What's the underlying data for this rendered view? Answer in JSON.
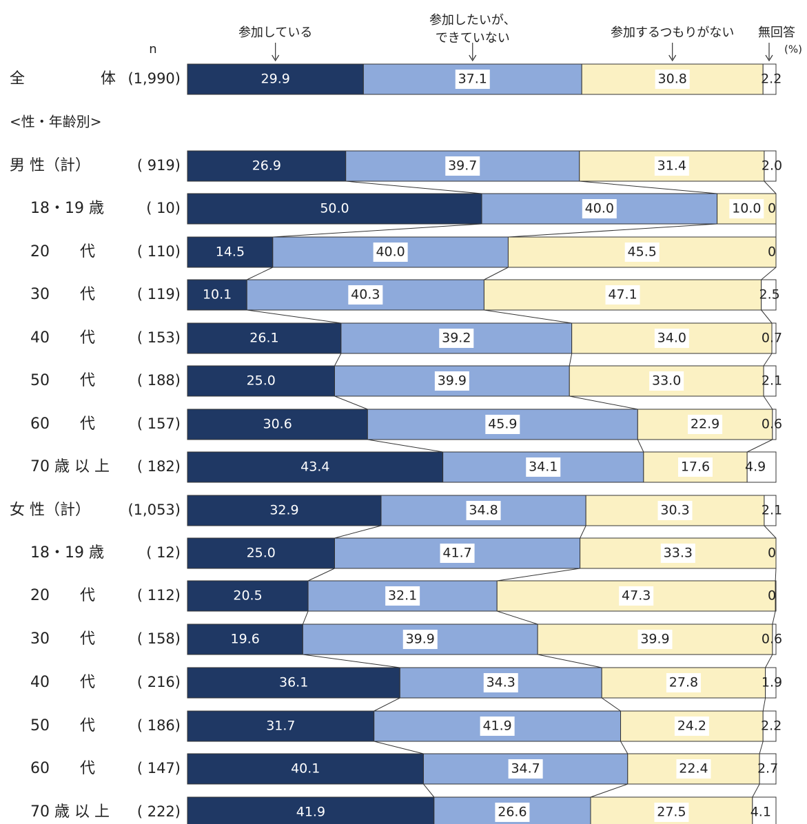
{
  "chart_data": {
    "type": "bar",
    "orientation": "horizontal-stacked-100",
    "n_header": "n",
    "unit_label": "(%)",
    "section_label": "<性・年齢別>",
    "series": [
      {
        "name": "参加している",
        "name_lines": [
          "参加している"
        ],
        "color": "#1f3864"
      },
      {
        "name": "参加したいが、できていない",
        "name_lines": [
          "参加したいが、",
          "できていない"
        ],
        "color": "#8eaadb"
      },
      {
        "name": "参加するつもりがない",
        "name_lines": [
          "参加するつもりがない"
        ],
        "color": "#fbf1c3"
      },
      {
        "name": "無回答",
        "name_lines": [
          "無回答"
        ],
        "color": "#ffffff"
      }
    ],
    "rows": [
      {
        "label": "全　　　　　体",
        "n": "(1,990)",
        "values": [
          29.9,
          37.1,
          30.8,
          2.2
        ],
        "labels": [
          "29.9",
          "37.1",
          "30.8",
          "2.2"
        ]
      },
      {
        "label": "男 性（計）",
        "n": "( 919)",
        "values": [
          26.9,
          39.7,
          31.4,
          2.0
        ],
        "labels": [
          "26.9",
          "39.7",
          "31.4",
          "2.0"
        ]
      },
      {
        "label": "18・19 歳",
        "n": "( 10)",
        "values": [
          50.0,
          40.0,
          10.0,
          0
        ],
        "labels": [
          "50.0",
          "40.0",
          "10.0",
          "0"
        ]
      },
      {
        "label": "20　　代",
        "n": "( 110)",
        "values": [
          14.5,
          40.0,
          45.5,
          0
        ],
        "labels": [
          "14.5",
          "40.0",
          "45.5",
          "0"
        ]
      },
      {
        "label": "30　　代",
        "n": "( 119)",
        "values": [
          10.1,
          40.3,
          47.1,
          2.5
        ],
        "labels": [
          "10.1",
          "40.3",
          "47.1",
          "2.5"
        ]
      },
      {
        "label": "40　　代",
        "n": "( 153)",
        "values": [
          26.1,
          39.2,
          34.0,
          0.7
        ],
        "labels": [
          "26.1",
          "39.2",
          "34.0",
          "0.7"
        ]
      },
      {
        "label": "50　　代",
        "n": "( 188)",
        "values": [
          25.0,
          39.9,
          33.0,
          2.1
        ],
        "labels": [
          "25.0",
          "39.9",
          "33.0",
          "2.1"
        ]
      },
      {
        "label": "60　　代",
        "n": "( 157)",
        "values": [
          30.6,
          45.9,
          22.9,
          0.6
        ],
        "labels": [
          "30.6",
          "45.9",
          "22.9",
          "0.6"
        ]
      },
      {
        "label": "70 歳 以 上",
        "n": "( 182)",
        "values": [
          43.4,
          34.1,
          17.6,
          4.9
        ],
        "labels": [
          "43.4",
          "34.1",
          "17.6",
          "4.9"
        ]
      },
      {
        "label": "女 性（計）",
        "n": "(1,053)",
        "values": [
          32.9,
          34.8,
          30.3,
          2.1
        ],
        "labels": [
          "32.9",
          "34.8",
          "30.3",
          "2.1"
        ]
      },
      {
        "label": "18・19 歳",
        "n": "( 12)",
        "values": [
          25.0,
          41.7,
          33.3,
          0
        ],
        "labels": [
          "25.0",
          "41.7",
          "33.3",
          "0"
        ]
      },
      {
        "label": "20　　代",
        "n": "( 112)",
        "values": [
          20.5,
          32.1,
          47.3,
          0
        ],
        "labels": [
          "20.5",
          "32.1",
          "47.3",
          "0"
        ]
      },
      {
        "label": "30　　代",
        "n": "( 158)",
        "values": [
          19.6,
          39.9,
          39.9,
          0.6
        ],
        "labels": [
          "19.6",
          "39.9",
          "39.9",
          "0.6"
        ]
      },
      {
        "label": "40　　代",
        "n": "( 216)",
        "values": [
          36.1,
          34.3,
          27.8,
          1.9
        ],
        "labels": [
          "36.1",
          "34.3",
          "27.8",
          "1.9"
        ]
      },
      {
        "label": "50　　代",
        "n": "( 186)",
        "values": [
          31.7,
          41.9,
          24.2,
          2.2
        ],
        "labels": [
          "31.7",
          "41.9",
          "24.2",
          "2.2"
        ]
      },
      {
        "label": "60　　代",
        "n": "( 147)",
        "values": [
          40.1,
          34.7,
          22.4,
          2.7
        ],
        "labels": [
          "40.1",
          "34.7",
          "22.4",
          "2.7"
        ]
      },
      {
        "label": "70 歳 以 上",
        "n": "( 222)",
        "values": [
          41.9,
          26.6,
          27.5,
          4.1
        ],
        "labels": [
          "41.9",
          "26.6",
          "27.5",
          "4.1"
        ]
      }
    ],
    "xlim": [
      0,
      100
    ],
    "grid": false,
    "legend": "top"
  }
}
